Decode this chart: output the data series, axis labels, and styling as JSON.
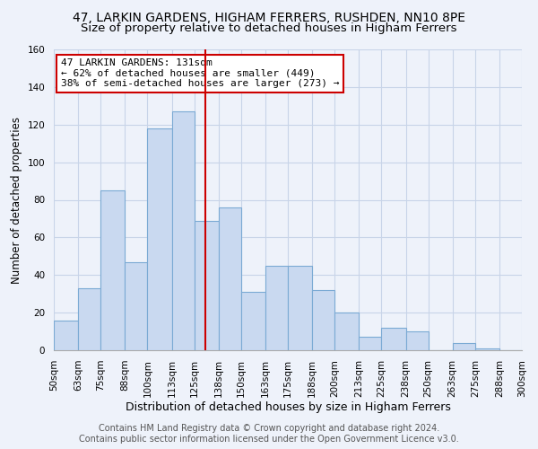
{
  "title": "47, LARKIN GARDENS, HIGHAM FERRERS, RUSHDEN, NN10 8PE",
  "subtitle": "Size of property relative to detached houses in Higham Ferrers",
  "xlabel": "Distribution of detached houses by size in Higham Ferrers",
  "ylabel": "Number of detached properties",
  "bins": [
    "50sqm",
    "63sqm",
    "75sqm",
    "88sqm",
    "100sqm",
    "113sqm",
    "125sqm",
    "138sqm",
    "150sqm",
    "163sqm",
    "175sqm",
    "188sqm",
    "200sqm",
    "213sqm",
    "225sqm",
    "238sqm",
    "250sqm",
    "263sqm",
    "275sqm",
    "288sqm",
    "300sqm"
  ],
  "bin_edges": [
    50,
    63,
    75,
    88,
    100,
    113,
    125,
    138,
    150,
    163,
    175,
    188,
    200,
    213,
    225,
    238,
    250,
    263,
    275,
    288,
    300
  ],
  "counts": [
    16,
    33,
    85,
    47,
    118,
    127,
    69,
    76,
    31,
    45,
    45,
    32,
    20,
    7,
    12,
    10,
    0,
    4,
    1,
    0
  ],
  "bar_color": "#c9d9f0",
  "bar_edgecolor": "#7baad4",
  "vline_x": 131,
  "vline_color": "#cc0000",
  "annotation_text": "47 LARKIN GARDENS: 131sqm\n← 62% of detached houses are smaller (449)\n38% of semi-detached houses are larger (273) →",
  "annotation_box_edgecolor": "#cc0000",
  "ylim": [
    0,
    160
  ],
  "yticks": [
    0,
    20,
    40,
    60,
    80,
    100,
    120,
    140,
    160
  ],
  "footer1": "Contains HM Land Registry data © Crown copyright and database right 2024.",
  "footer2": "Contains public sector information licensed under the Open Government Licence v3.0.",
  "title_fontsize": 10,
  "subtitle_fontsize": 9.5,
  "xlabel_fontsize": 9,
  "ylabel_fontsize": 8.5,
  "tick_fontsize": 7.5,
  "annotation_fontsize": 8,
  "footer_fontsize": 7,
  "bg_color": "#eef2fa",
  "grid_color": "#c8d4e8"
}
